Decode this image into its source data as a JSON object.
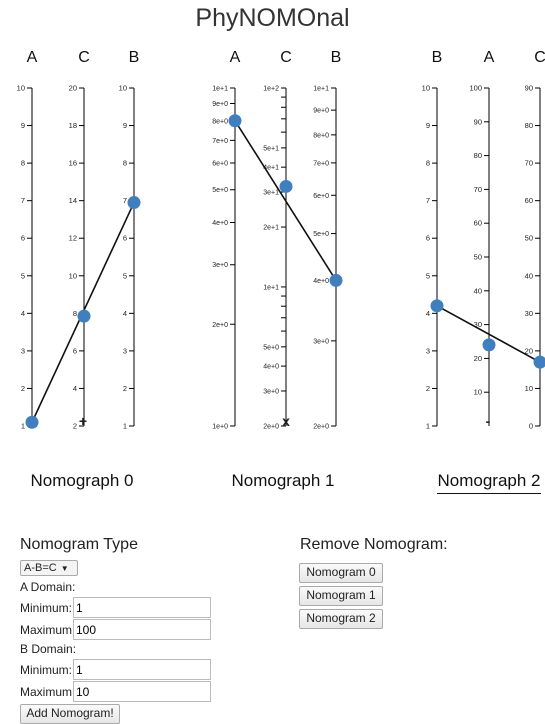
{
  "app": {
    "title": "PhyNOMOnal"
  },
  "nomograms": [
    {
      "caption": "Nomograph 0",
      "operator": "+",
      "axes": [
        {
          "name": "A",
          "scale": "linear",
          "min": 1,
          "max": 10,
          "ticks": [
            1,
            2,
            3,
            4,
            5,
            6,
            7,
            8,
            9,
            10
          ]
        },
        {
          "name": "C",
          "scale": "linear",
          "min": 2,
          "max": 20,
          "ticks": [
            2,
            4,
            6,
            8,
            10,
            12,
            14,
            16,
            18,
            20
          ]
        },
        {
          "name": "B",
          "scale": "linear",
          "min": 1,
          "max": 10,
          "ticks": [
            1,
            2,
            3,
            4,
            5,
            6,
            7,
            8,
            9,
            10
          ]
        }
      ],
      "points": [
        1.1,
        7.85,
        6.95
      ]
    },
    {
      "caption": "Nomograph 1",
      "operator": "x",
      "axes": [
        {
          "name": "A",
          "scale": "log",
          "min": 1,
          "max": 10,
          "ticks": [
            1,
            2,
            3,
            4,
            5,
            6,
            7,
            8,
            9,
            10
          ],
          "labels": [
            "1e+0",
            "2e+0",
            "3e+0",
            "4e+0",
            "5e+0",
            "6e+0",
            "7e+0",
            "8e+0",
            "9e+0",
            "1e+1"
          ]
        },
        {
          "name": "C",
          "scale": "log",
          "min": 2,
          "max": 100,
          "ticks": [
            2,
            3,
            4,
            5,
            10,
            20,
            30,
            40,
            50,
            100
          ],
          "labels": [
            "2e+0",
            "3e+0",
            "4e+0",
            "5e+0",
            "1e+1",
            "2e+1",
            "3e+1",
            "4e+1",
            "5e+1",
            "1e+2"
          ],
          "minor_ticks": [
            6,
            7,
            8,
            9,
            60,
            70,
            80,
            90
          ]
        },
        {
          "name": "B",
          "scale": "log",
          "min": 2,
          "max": 10,
          "ticks": [
            2,
            3,
            4,
            5,
            6,
            7,
            8,
            9,
            10
          ],
          "labels": [
            "2e+0",
            "3e+0",
            "4e+0",
            "5e+0",
            "6e+0",
            "7e+0",
            "8e+0",
            "9e+0",
            "1e+1"
          ]
        }
      ],
      "points": [
        8,
        32,
        4
      ]
    },
    {
      "caption": "Nomograph 2",
      "operator": "-",
      "axes": [
        {
          "name": "B",
          "scale": "linear",
          "min": 1,
          "max": 10,
          "ticks": [
            1,
            2,
            3,
            4,
            5,
            6,
            7,
            8,
            9,
            10
          ]
        },
        {
          "name": "A",
          "scale": "linear",
          "min": 0,
          "max": 100,
          "ticks": [
            10,
            20,
            30,
            40,
            50,
            60,
            70,
            80,
            90,
            100
          ]
        },
        {
          "name": "C",
          "scale": "linear",
          "min": 0,
          "max": 90,
          "ticks": [
            0,
            10,
            20,
            30,
            40,
            50,
            60,
            70,
            80,
            90
          ]
        }
      ],
      "points": [
        4.2,
        24,
        17
      ]
    }
  ],
  "form": {
    "heading": "Nomogram Type",
    "type_value": "A-B=C",
    "a_domain_label": "A Domain:",
    "b_domain_label": "B Domain:",
    "min_label": "Minimum:",
    "max_label": "Maximum:",
    "a_min": "1",
    "a_max": "100",
    "b_min": "1",
    "b_max": "10",
    "add_button": "Add Nomogram!"
  },
  "remove": {
    "heading": "Remove Nomogram:",
    "buttons": [
      "Nomogram 0",
      "Nomogram 1",
      "Nomogram 2"
    ]
  },
  "colors": {
    "point": "#3f7fbf",
    "line": "#111111",
    "axis": "#000000"
  }
}
